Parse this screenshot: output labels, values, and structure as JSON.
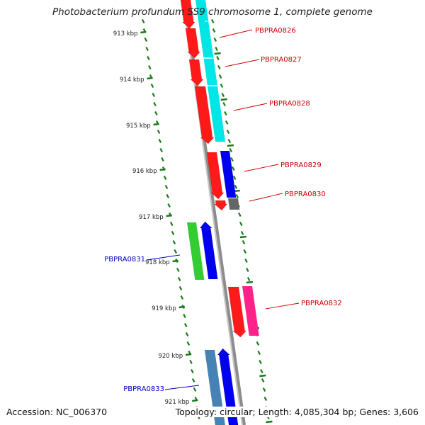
{
  "title": "Photobacterium profundum SS9 chromosome 1, complete genome",
  "footer": {
    "accession": "Accession: NC_006370",
    "summary": "Topology: circular; Length: 4,085,304 bp; Genes: 3,606"
  },
  "colors": {
    "backbone": "#8c8c8c",
    "scale_ticks": "#1a7a1a",
    "red_label": "#cc0000",
    "blue_label": "#0000bb"
  },
  "scale_ticks": [
    "913 kbp",
    "914 kbp",
    "915 kbp",
    "916 kbp",
    "917 kbp",
    "918 kbp",
    "919 kbp",
    "920 kbp",
    "921 kbp"
  ],
  "genes": [
    {
      "label": "PBPRA0826",
      "strand": "right",
      "color": "#cc0000"
    },
    {
      "label": "PBPRA0827",
      "strand": "right",
      "color": "#cc0000"
    },
    {
      "label": "PBPRA0828",
      "strand": "right",
      "color": "#cc0000"
    },
    {
      "label": "PBPRA0829",
      "strand": "right",
      "color": "#cc0000"
    },
    {
      "label": "PBPRA0830",
      "strand": "right",
      "color": "#cc0000"
    },
    {
      "label": "PBPRA0831",
      "strand": "left",
      "color": "#0000bb"
    },
    {
      "label": "PBPRA0832",
      "strand": "right",
      "color": "#cc0000"
    },
    {
      "label": "PBPRA0833",
      "strand": "left",
      "color": "#0000bb"
    }
  ]
}
